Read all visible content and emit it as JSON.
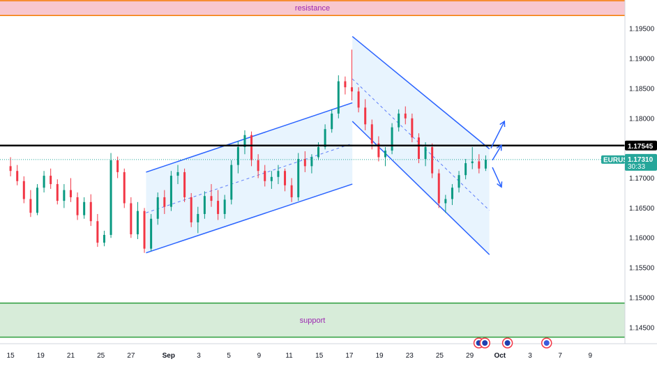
{
  "chart_data": {
    "type": "candlestick",
    "symbol": "EURUSD",
    "current_price": 1.1731,
    "countdown": "30:33",
    "level_price": 1.17545,
    "level_label": "1.17545",
    "price_label": "1.17310",
    "y_range": [
      1.1423,
      1.1998
    ],
    "y_ticks": [
      "1.19500",
      "1.19000",
      "1.18500",
      "1.18000",
      "1.17000",
      "1.16500",
      "1.16000",
      "1.15500",
      "1.15000",
      "1.14500"
    ],
    "y_tick_values": [
      1.195,
      1.19,
      1.185,
      1.18,
      1.17,
      1.165,
      1.16,
      1.155,
      1.15,
      1.145
    ],
    "x_ticks": [
      "15",
      "19",
      "21",
      "25",
      "27",
      "Sep",
      "3",
      "5",
      "9",
      "11",
      "15",
      "17",
      "19",
      "23",
      "25",
      "29",
      "Oct",
      "3",
      "7",
      "9"
    ],
    "x_tick_index": [
      0,
      2,
      4,
      6,
      8,
      10.5,
      12.5,
      14.5,
      16.5,
      18.5,
      20.5,
      22.5,
      24.5,
      26.5,
      28.5,
      30.5,
      32.5,
      34.5,
      36.5,
      38.5
    ],
    "x_range": [
      -0.7,
      40.8
    ],
    "zones": {
      "resistance": {
        "label": "resistance",
        "from": 1.1972,
        "to": 1.1998,
        "color": "#f8c7cf",
        "border": "#f57c00"
      },
      "support": {
        "label": "support",
        "from": 1.1434,
        "to": 1.1491,
        "color": "#d7ecd9",
        "border": "#2e9e3e"
      }
    },
    "ascending_channel": {
      "upper": [
        [
          9.0,
          1.171
        ],
        [
          22.7,
          1.1826
        ]
      ],
      "lower": [
        [
          9.0,
          1.1575
        ],
        [
          22.7,
          1.169
        ]
      ],
      "mid": [
        [
          9.0,
          1.1642
        ],
        [
          22.7,
          1.1758
        ]
      ]
    },
    "descending_channel": {
      "upper": [
        [
          22.7,
          1.1937
        ],
        [
          31.8,
          1.1749
        ]
      ],
      "lower": [
        [
          22.7,
          1.1795
        ],
        [
          31.8,
          1.1572
        ]
      ],
      "mid": [
        [
          22.7,
          1.1866
        ],
        [
          31.8,
          1.1646
        ]
      ]
    },
    "arrows": [
      {
        "from": [
          31.9,
          1.175
        ],
        "to": [
          32.8,
          1.1795
        ]
      },
      {
        "from": [
          32.0,
          1.173
        ],
        "to": [
          32.6,
          1.1755
        ]
      },
      {
        "from": [
          32.0,
          1.1718
        ],
        "to": [
          32.6,
          1.1685
        ]
      }
    ],
    "candles": [
      [
        1.172,
        1.1735,
        1.1703,
        1.1712
      ],
      [
        1.1712,
        1.1722,
        1.1688,
        1.1695
      ],
      [
        1.1695,
        1.1703,
        1.1658,
        1.1665
      ],
      [
        1.1665,
        1.168,
        1.1635,
        1.1642
      ],
      [
        1.1642,
        1.169,
        1.1638,
        1.1684
      ],
      [
        1.1684,
        1.1712,
        1.1676,
        1.1704
      ],
      [
        1.1704,
        1.1716,
        1.1682,
        1.169
      ],
      [
        1.169,
        1.1698,
        1.1656,
        1.1662
      ],
      [
        1.1662,
        1.169,
        1.165,
        1.168
      ],
      [
        1.168,
        1.17,
        1.166,
        1.1668
      ],
      [
        1.1668,
        1.1676,
        1.163,
        1.1638
      ],
      [
        1.1638,
        1.1668,
        1.1632,
        1.166
      ],
      [
        1.166,
        1.1673,
        1.162,
        1.1628
      ],
      [
        1.1628,
        1.164,
        1.1585,
        1.1592
      ],
      [
        1.1592,
        1.1612,
        1.1586,
        1.1605
      ],
      [
        1.1605,
        1.1742,
        1.16,
        1.173
      ],
      [
        1.173,
        1.1736,
        1.17,
        1.171
      ],
      [
        1.171,
        1.1716,
        1.165,
        1.1658
      ],
      [
        1.1658,
        1.1668,
        1.16,
        1.1606
      ],
      [
        1.1606,
        1.166,
        1.1598,
        1.1645
      ],
      [
        1.1645,
        1.165,
        1.1575,
        1.1582
      ],
      [
        1.1582,
        1.164,
        1.1578,
        1.1632
      ],
      [
        1.1632,
        1.1676,
        1.1622,
        1.1668
      ],
      [
        1.1668,
        1.168,
        1.164,
        1.1652
      ],
      [
        1.1652,
        1.1712,
        1.1645,
        1.1704
      ],
      [
        1.1704,
        1.1722,
        1.169,
        1.171
      ],
      [
        1.171,
        1.1716,
        1.166,
        1.1668
      ],
      [
        1.1668,
        1.1675,
        1.1618,
        1.1626
      ],
      [
        1.1626,
        1.1652,
        1.1608,
        1.164
      ],
      [
        1.164,
        1.1678,
        1.1632,
        1.167
      ],
      [
        1.167,
        1.169,
        1.1652,
        1.1662
      ],
      [
        1.1662,
        1.168,
        1.163,
        1.164
      ],
      [
        1.164,
        1.1672,
        1.1632,
        1.1664
      ],
      [
        1.1664,
        1.173,
        1.1656,
        1.1722
      ],
      [
        1.1722,
        1.1762,
        1.1708,
        1.1752
      ],
      [
        1.1752,
        1.178,
        1.174,
        1.1772
      ],
      [
        1.1772,
        1.1778,
        1.172,
        1.173
      ],
      [
        1.173,
        1.174,
        1.17,
        1.1712
      ],
      [
        1.1712,
        1.1722,
        1.1686,
        1.1695
      ],
      [
        1.1695,
        1.1712,
        1.1682,
        1.1702
      ],
      [
        1.1702,
        1.1722,
        1.169,
        1.1712
      ],
      [
        1.1712,
        1.1716,
        1.1678,
        1.1688
      ],
      [
        1.1688,
        1.17,
        1.166,
        1.1668
      ],
      [
        1.1668,
        1.1742,
        1.1662,
        1.1732
      ],
      [
        1.1732,
        1.1745,
        1.171,
        1.172
      ],
      [
        1.172,
        1.174,
        1.1708,
        1.1735
      ],
      [
        1.1735,
        1.176,
        1.173,
        1.1752
      ],
      [
        1.1752,
        1.179,
        1.1748,
        1.1782
      ],
      [
        1.1782,
        1.1815,
        1.1776,
        1.1808
      ],
      [
        1.1808,
        1.1872,
        1.18,
        1.1862
      ],
      [
        1.1862,
        1.187,
        1.184,
        1.1852
      ],
      [
        1.1852,
        1.1915,
        1.183,
        1.1845
      ],
      [
        1.1845,
        1.1852,
        1.181,
        1.1818
      ],
      [
        1.1818,
        1.1832,
        1.178,
        1.179
      ],
      [
        1.179,
        1.1798,
        1.1748,
        1.1758
      ],
      [
        1.1758,
        1.177,
        1.1728,
        1.1735
      ],
      [
        1.1735,
        1.1752,
        1.172,
        1.1746
      ],
      [
        1.1746,
        1.1792,
        1.174,
        1.1785
      ],
      [
        1.1785,
        1.1815,
        1.1778,
        1.1808
      ],
      [
        1.1808,
        1.182,
        1.179,
        1.18
      ],
      [
        1.18,
        1.1808,
        1.176,
        1.1768
      ],
      [
        1.1768,
        1.1775,
        1.1725,
        1.1732
      ],
      [
        1.1732,
        1.176,
        1.172,
        1.1752
      ],
      [
        1.1752,
        1.1758,
        1.17,
        1.1708
      ],
      [
        1.1708,
        1.1715,
        1.165,
        1.1658
      ],
      [
        1.1658,
        1.1672,
        1.1642,
        1.1665
      ],
      [
        1.1665,
        1.169,
        1.1655,
        1.1684
      ],
      [
        1.1684,
        1.1712,
        1.1676,
        1.1705
      ],
      [
        1.1705,
        1.1732,
        1.1698,
        1.1725
      ],
      [
        1.1725,
        1.1752,
        1.1715,
        1.1728
      ],
      [
        1.1728,
        1.174,
        1.1708,
        1.1716
      ],
      [
        1.1716,
        1.1738,
        1.1712,
        1.1731
      ]
    ]
  }
}
